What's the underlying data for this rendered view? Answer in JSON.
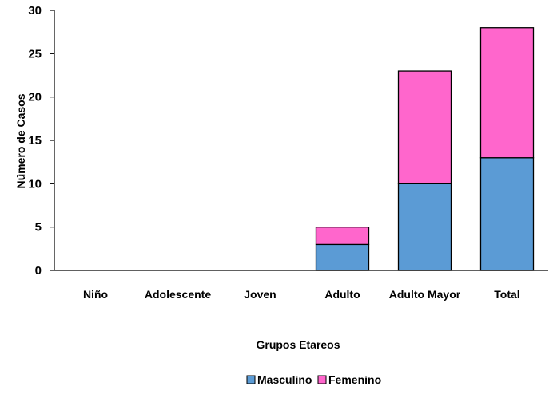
{
  "chart_data": {
    "type": "bar",
    "stacked": true,
    "title": "",
    "xlabel": "Grupos Etareos",
    "ylabel": "Número de Casos",
    "ylim": [
      0,
      30
    ],
    "yticks": [
      0,
      5,
      10,
      15,
      20,
      25,
      30
    ],
    "categories": [
      "Niño",
      "Adolescente",
      "Joven",
      "Adulto",
      "Adulto Mayor",
      "Total"
    ],
    "series": [
      {
        "name": "Masculino",
        "color": "#5B9BD5",
        "values": [
          0,
          0,
          0,
          3,
          10,
          13
        ]
      },
      {
        "name": "Femenino",
        "color": "#FF66CC",
        "values": [
          0,
          0,
          0,
          2,
          13,
          15
        ]
      }
    ],
    "grid": false,
    "legend": "bottom"
  }
}
